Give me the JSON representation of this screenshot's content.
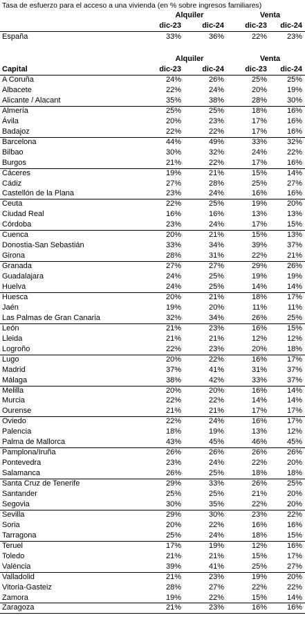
{
  "title": "Tasa de esfuerzo para el acceso a una vivienda (en % sobre ingresos familiares)",
  "top_header": {
    "groups": [
      "Alquiler",
      "Venta"
    ],
    "periods": [
      "dic-23",
      "dic-24",
      "dic-23",
      "dic-24"
    ]
  },
  "spain": [
    "España",
    "33%",
    "36%",
    "22%",
    "23%"
  ],
  "table": {
    "groups": [
      "Alquiler",
      "Venta"
    ],
    "label": "Capital",
    "periods": [
      "dic-23",
      "dic-24",
      "dic-23",
      "dic-24"
    ],
    "rows": [
      [
        "A Coruña",
        "24%",
        "26%",
        "25%",
        "25%"
      ],
      [
        "Albacete",
        "22%",
        "24%",
        "20%",
        "19%"
      ],
      [
        "Alicante / Alacant",
        "35%",
        "38%",
        "28%",
        "30%"
      ],
      [
        "Almería",
        "25%",
        "25%",
        "18%",
        "16%"
      ],
      [
        "Ávila",
        "20%",
        "23%",
        "17%",
        "16%"
      ],
      [
        "Badajoz",
        "22%",
        "22%",
        "17%",
        "16%"
      ],
      [
        "Barcelona",
        "44%",
        "49%",
        "33%",
        "32%"
      ],
      [
        "Bilbao",
        "30%",
        "32%",
        "24%",
        "22%"
      ],
      [
        "Burgos",
        "21%",
        "22%",
        "17%",
        "16%"
      ],
      [
        "Cáceres",
        "19%",
        "21%",
        "15%",
        "14%"
      ],
      [
        "Cádiz",
        "27%",
        "28%",
        "25%",
        "27%"
      ],
      [
        "Castellón de la Plana",
        "23%",
        "24%",
        "16%",
        "16%"
      ],
      [
        "Ceuta",
        "22%",
        "25%",
        "19%",
        "20%"
      ],
      [
        "Ciudad Real",
        "16%",
        "16%",
        "13%",
        "13%"
      ],
      [
        "Córdoba",
        "23%",
        "24%",
        "17%",
        "15%"
      ],
      [
        "Cuenca",
        "20%",
        "21%",
        "15%",
        "13%"
      ],
      [
        "Donostia-San Sebastián",
        "33%",
        "34%",
        "39%",
        "37%"
      ],
      [
        "Girona",
        "28%",
        "31%",
        "22%",
        "21%"
      ],
      [
        "Granada",
        "27%",
        "27%",
        "29%",
        "26%"
      ],
      [
        "Guadalajara",
        "24%",
        "25%",
        "19%",
        "19%"
      ],
      [
        "Huelva",
        "24%",
        "25%",
        "14%",
        "14%"
      ],
      [
        "Huesca",
        "20%",
        "21%",
        "18%",
        "17%"
      ],
      [
        "Jaén",
        "19%",
        "20%",
        "11%",
        "11%"
      ],
      [
        "Las Palmas de Gran Canaria",
        "32%",
        "34%",
        "26%",
        "25%"
      ],
      [
        "León",
        "21%",
        "23%",
        "16%",
        "15%"
      ],
      [
        "Lleida",
        "21%",
        "21%",
        "12%",
        "12%"
      ],
      [
        "Logroño",
        "22%",
        "23%",
        "20%",
        "18%"
      ],
      [
        "Lugo",
        "20%",
        "22%",
        "16%",
        "17%"
      ],
      [
        "Madrid",
        "37%",
        "41%",
        "31%",
        "37%"
      ],
      [
        "Málaga",
        "38%",
        "42%",
        "33%",
        "37%"
      ],
      [
        "Melilla",
        "20%",
        "20%",
        "16%",
        "14%"
      ],
      [
        "Murcia",
        "22%",
        "22%",
        "14%",
        "14%"
      ],
      [
        "Ourense",
        "21%",
        "21%",
        "17%",
        "17%"
      ],
      [
        "Oviedo",
        "22%",
        "24%",
        "16%",
        "17%"
      ],
      [
        "Palencia",
        "18%",
        "19%",
        "13%",
        "12%"
      ],
      [
        "Palma de Mallorca",
        "43%",
        "45%",
        "46%",
        "45%"
      ],
      [
        "Pamplona/Iruña",
        "26%",
        "26%",
        "26%",
        "26%"
      ],
      [
        "Pontevedra",
        "23%",
        "24%",
        "22%",
        "20%"
      ],
      [
        "Salamanca",
        "26%",
        "25%",
        "18%",
        "18%"
      ],
      [
        "Santa Cruz de Tenerife",
        "29%",
        "33%",
        "26%",
        "25%"
      ],
      [
        "Santander",
        "25%",
        "25%",
        "21%",
        "20%"
      ],
      [
        "Segovia",
        "30%",
        "35%",
        "22%",
        "20%"
      ],
      [
        "Sevilla",
        "29%",
        "30%",
        "23%",
        "22%"
      ],
      [
        "Soria",
        "20%",
        "22%",
        "16%",
        "16%"
      ],
      [
        "Tarragona",
        "25%",
        "24%",
        "18%",
        "15%"
      ],
      [
        "Teruel",
        "17%",
        "19%",
        "12%",
        "16%"
      ],
      [
        "Toledo",
        "21%",
        "21%",
        "15%",
        "17%"
      ],
      [
        "València",
        "39%",
        "41%",
        "25%",
        "27%"
      ],
      [
        "Valladolid",
        "21%",
        "23%",
        "19%",
        "20%"
      ],
      [
        "Vitoria-Gasteiz",
        "28%",
        "27%",
        "22%",
        "22%"
      ],
      [
        "Zamora",
        "19%",
        "22%",
        "15%",
        "14%"
      ],
      [
        "Zaragoza",
        "21%",
        "23%",
        "16%",
        "16%"
      ]
    ]
  }
}
